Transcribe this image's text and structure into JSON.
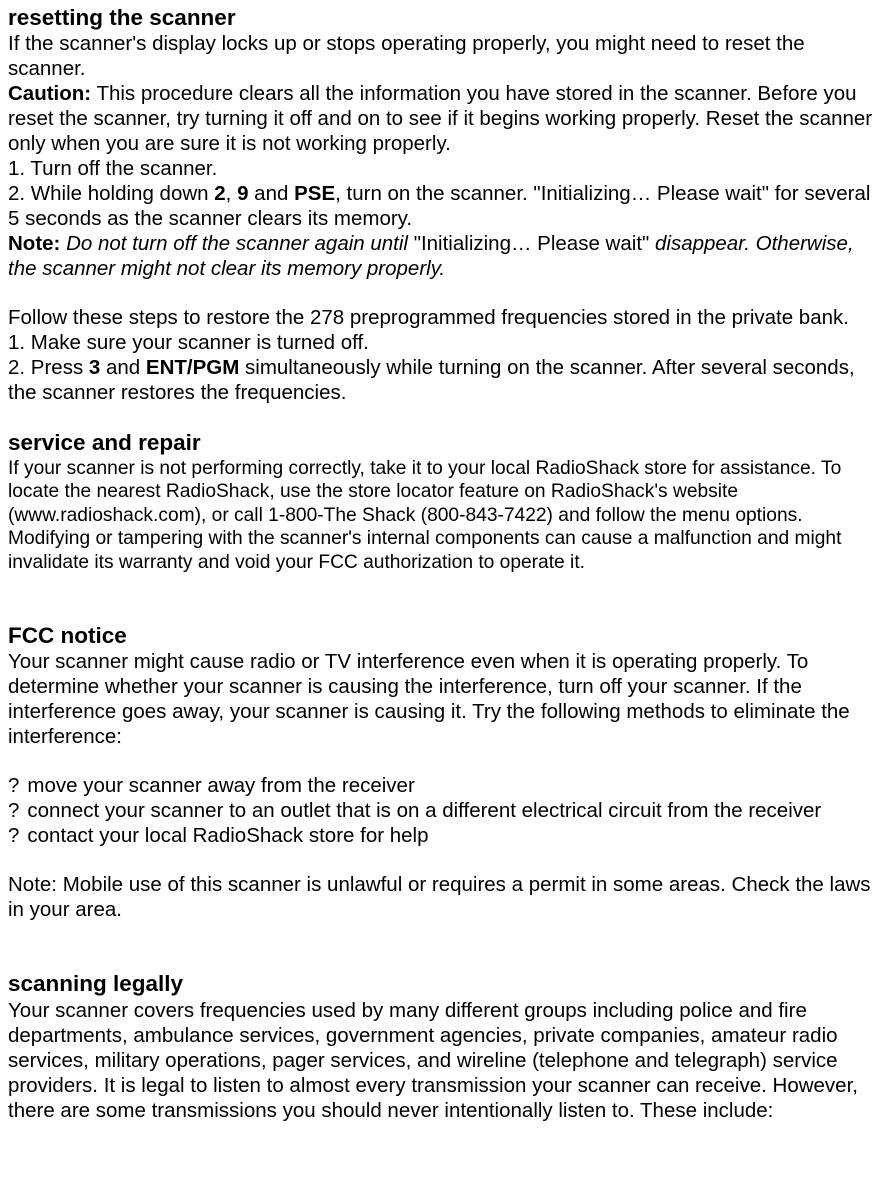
{
  "section1": {
    "heading": "resetting the scanner",
    "p1": "If the scanner's display locks up or stops operating properly, you might need to reset the scanner.",
    "caution_label": "Caution:",
    "caution_text": " This procedure clears all the information you have stored in the scanner. Before you reset the scanner, try turning it off and on to see if it begins working properly. Reset the scanner only when you are sure it is not working properly.",
    "step1": "1. Turn off the scanner.",
    "step2_a": "2. While holding down ",
    "k2": "2",
    "comma": ", ",
    "k9": "9",
    "and": " and ",
    "kpse": "PSE",
    "step2_b": ", turn on the scanner. \"Initializing… Please wait\" for several 5 seconds as the scanner clears its memory.",
    "note_label": "Note:",
    "note_i1": "Do not turn off the scanner again until ",
    "note_mid": "\"Initializing… Please wait\"",
    "note_i2": " disappear. Otherwise, the scanner might not clear its memory properly.",
    "follow": "Follow these steps to restore the 278 preprogrammed frequencies stored in the private bank.",
    "b1": "1. Make sure your scanner is turned off.",
    "b2_a": "2. Press ",
    "k3": "3",
    "b2_and": " and ",
    "kent": "ENT/PGM",
    "b2_b": " simultaneously while turning on the scanner. After several seconds, the scanner restores the frequencies."
  },
  "section2": {
    "heading": "service and repair",
    "p": "If your scanner is not performing correctly, take it to your local RadioShack store for assistance. To locate the nearest RadioShack, use the store locator feature on RadioShack's website (www.radioshack.com), or call 1-800-The Shack (800-843-7422) and follow the menu options. Modifying or tampering with the scanner's internal components can cause a malfunction and might invalidate its warranty and void your FCC authorization to operate it."
  },
  "section3": {
    "heading": "FCC notice",
    "p1": "Your scanner might cause radio or TV interference even when it is operating properly. To determine whether your scanner is causing the interference, turn off your scanner. If the interference goes away, your scanner is causing it. Try the following methods to eliminate the interference:",
    "bullets": [
      "move your scanner away from the receiver",
      "connect your scanner to an outlet that is on a different electrical circuit from the receiver",
      "contact your local RadioShack store for help"
    ],
    "p2": "Note: Mobile use of this scanner is unlawful or requires a permit in some areas. Check the laws in your area."
  },
  "section4": {
    "heading": "scanning legally",
    "p": "Your scanner covers frequencies used by many different groups including police and fire departments, ambulance services, government agencies, private companies, amateur radio services, military operations, pager services, and wireline (telephone and telegraph) service providers. It is legal to listen to almost every transmission your scanner can receive. However, there are some transmissions you should never intentionally listen to. These include:"
  },
  "bullet_marker": "?"
}
